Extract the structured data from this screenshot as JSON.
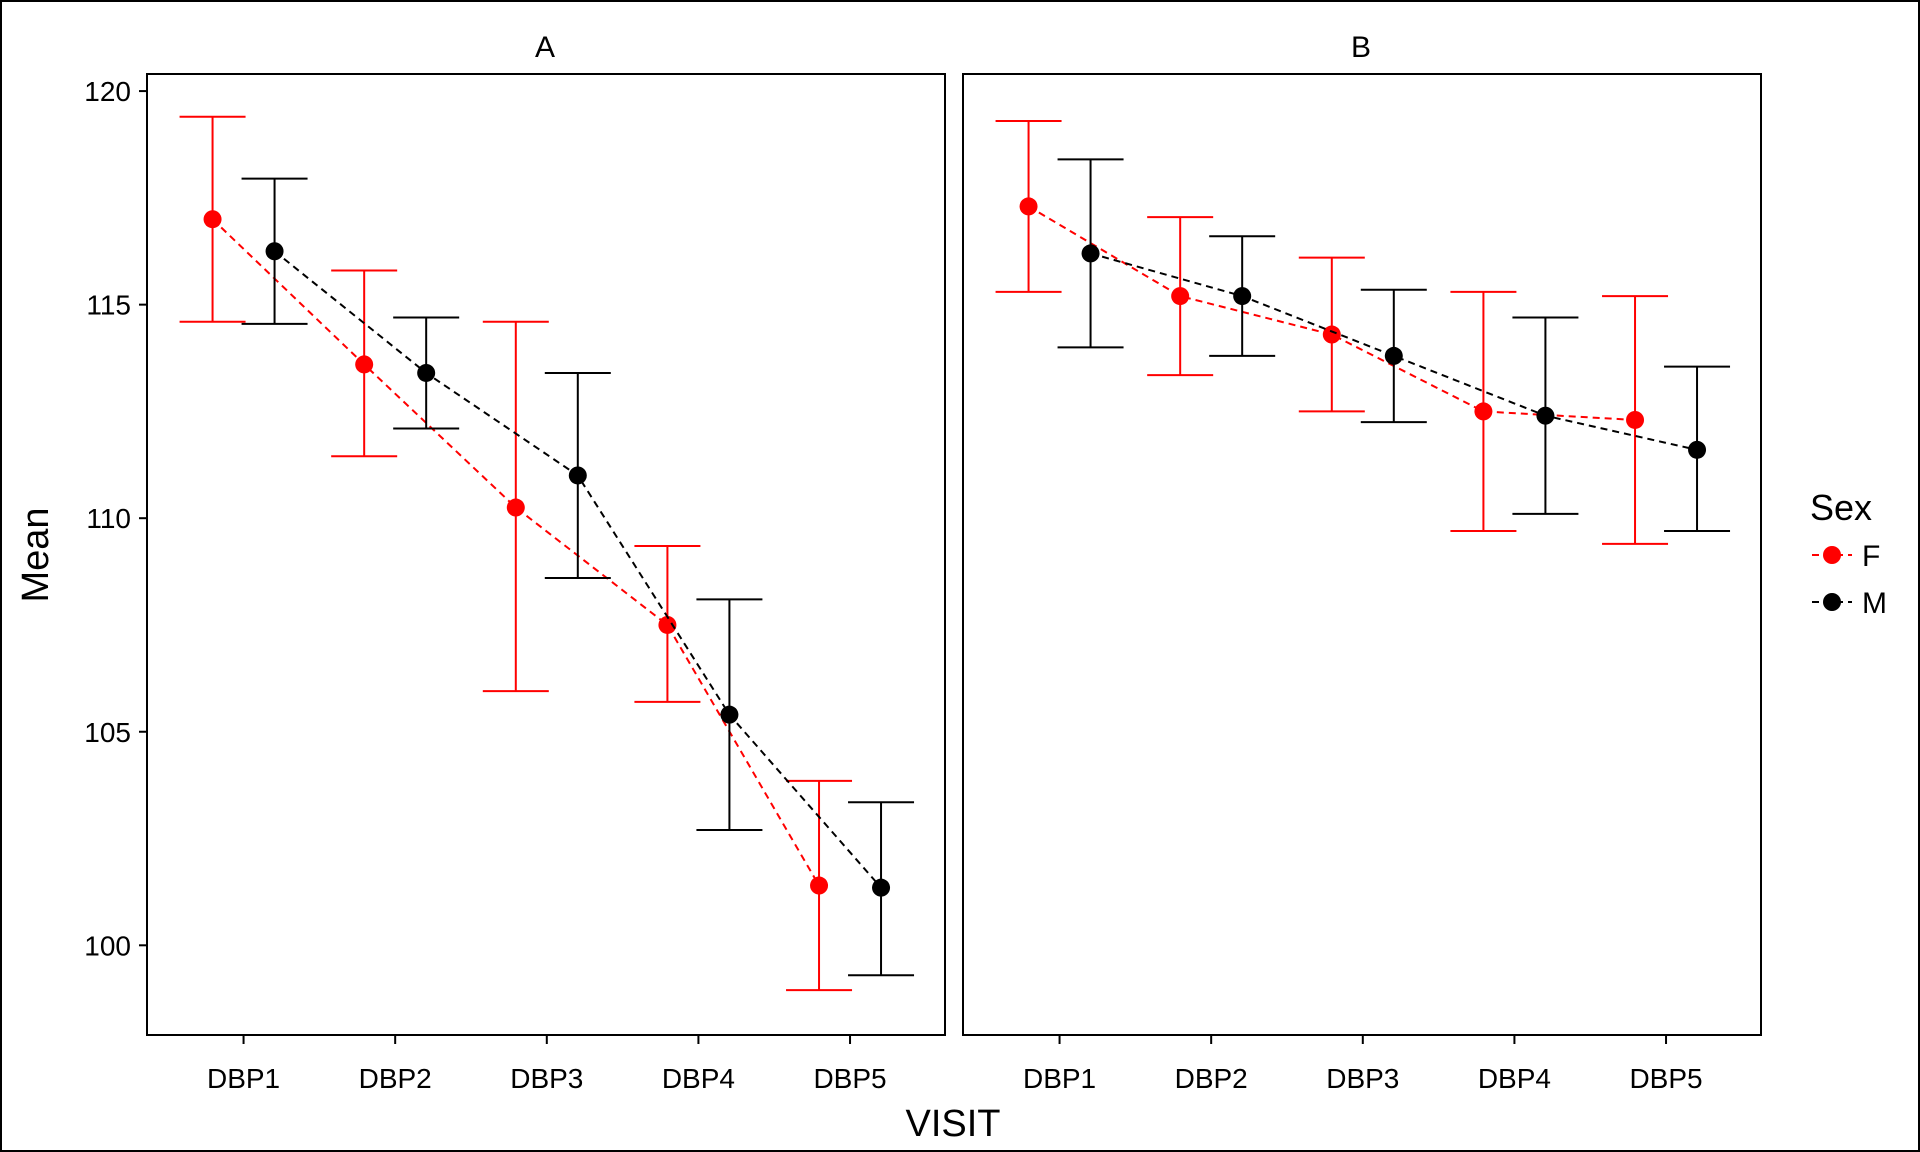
{
  "chart_data": {
    "type": "line",
    "subtype": "faceted point-and-line with error bars",
    "xlabel": "VISIT",
    "ylabel": "Mean",
    "categories": [
      "DBP1",
      "DBP2",
      "DBP3",
      "DBP4",
      "DBP5"
    ],
    "ylim": [
      97.9,
      120.4
    ],
    "yticks": [
      100,
      105,
      110,
      115,
      120
    ],
    "grid": false,
    "line_style": "dashed",
    "legend": {
      "title": "Sex",
      "placement": "right",
      "entries": [
        {
          "label": "F",
          "color": "#ff0000"
        },
        {
          "label": "M",
          "color": "#000000"
        }
      ]
    },
    "panels": [
      {
        "title": "A",
        "series": [
          {
            "name": "F",
            "color": "#ff0000",
            "values": [
              117.0,
              113.6,
              110.25,
              107.5,
              101.4
            ],
            "lower": [
              114.6,
              111.45,
              105.95,
              105.7,
              98.95
            ],
            "upper": [
              119.4,
              115.8,
              114.6,
              109.35,
              103.85
            ]
          },
          {
            "name": "M",
            "color": "#000000",
            "values": [
              116.25,
              113.4,
              111.0,
              105.4,
              101.35
            ],
            "lower": [
              114.55,
              112.1,
              108.6,
              102.7,
              99.3
            ],
            "upper": [
              117.95,
              114.7,
              113.4,
              108.1,
              103.35
            ]
          }
        ]
      },
      {
        "title": "B",
        "series": [
          {
            "name": "F",
            "color": "#ff0000",
            "values": [
              117.3,
              115.2,
              114.3,
              112.5,
              112.3
            ],
            "lower": [
              115.3,
              113.35,
              112.5,
              109.7,
              109.4
            ],
            "upper": [
              119.3,
              117.05,
              116.1,
              115.3,
              115.2
            ]
          },
          {
            "name": "M",
            "color": "#000000",
            "values": [
              116.2,
              115.2,
              113.8,
              112.4,
              111.6
            ],
            "lower": [
              114.0,
              113.8,
              112.25,
              110.1,
              109.7
            ],
            "upper": [
              118.4,
              116.6,
              115.35,
              114.7,
              113.55
            ]
          }
        ]
      }
    ]
  }
}
